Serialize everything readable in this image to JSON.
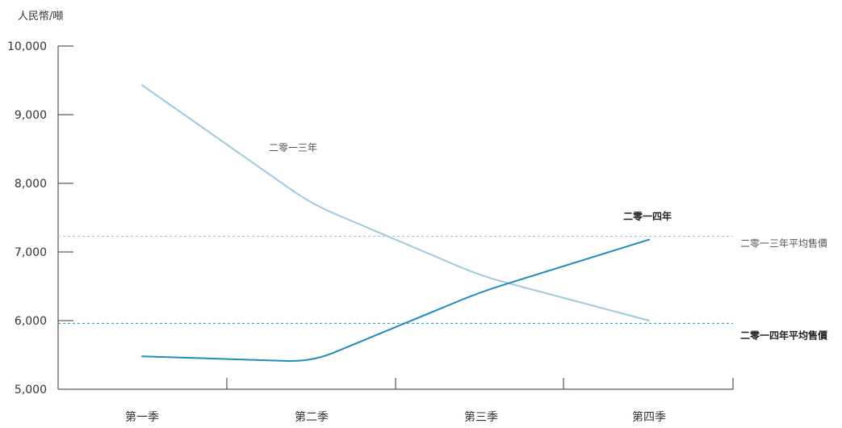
{
  "chart_data": {
    "type": "line",
    "ylabel": "人民幣/噸",
    "categories": [
      "第一季",
      "第二季",
      "第三季",
      "第四季"
    ],
    "ylim": [
      5000,
      10000
    ],
    "y_ticks": [
      5000,
      6000,
      7000,
      8000,
      9000,
      10000
    ],
    "y_tick_labels": [
      "5,000",
      "6,000",
      "7,000",
      "8,000",
      "9,000",
      "10,000"
    ],
    "series": [
      {
        "name": "二零一三年",
        "color": "#9ac8e0",
        "values": [
          9430,
          7700,
          6650,
          6000
        ]
      },
      {
        "name": "二零一四年",
        "color": "#1a8dbe",
        "values": [
          5480,
          5400,
          6420,
          7180
        ]
      }
    ],
    "reference_lines": [
      {
        "label": "二零一三年平均售價",
        "value": 7230,
        "color": "#9ac8e0",
        "style": "dashed"
      },
      {
        "label": "二零一四年平均售價",
        "value": 5960,
        "color": "#1a8dbe",
        "style": "dashed"
      }
    ],
    "grid": false,
    "legend": "none"
  }
}
